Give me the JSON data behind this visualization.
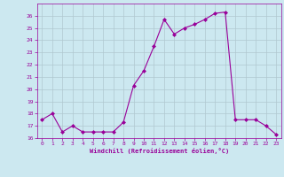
{
  "x": [
    0,
    1,
    2,
    3,
    4,
    5,
    6,
    7,
    8,
    9,
    10,
    11,
    12,
    13,
    14,
    15,
    16,
    17,
    18,
    19,
    20,
    21,
    22,
    23
  ],
  "y": [
    17.5,
    18.0,
    16.5,
    17.0,
    16.5,
    16.5,
    16.5,
    16.5,
    17.3,
    20.3,
    21.5,
    23.5,
    25.7,
    24.5,
    25.0,
    25.3,
    25.7,
    26.2,
    26.3,
    17.5,
    17.5,
    17.5,
    17.0,
    16.3
  ],
  "ylim": [
    16,
    27
  ],
  "xlim": [
    -0.5,
    23.5
  ],
  "yticks": [
    16,
    17,
    18,
    19,
    20,
    21,
    22,
    23,
    24,
    25,
    26
  ],
  "xticks": [
    0,
    1,
    2,
    3,
    4,
    5,
    6,
    7,
    8,
    9,
    10,
    11,
    12,
    13,
    14,
    15,
    16,
    17,
    18,
    19,
    20,
    21,
    22,
    23
  ],
  "xlabel": "Windchill (Refroidissement éolien,°C)",
  "line_color": "#990099",
  "marker_color": "#990099",
  "bg_color": "#cce8f0",
  "grid_color": "#b0c8d0",
  "axis_color": "#990099",
  "tick_color": "#990099",
  "label_color": "#990099",
  "fig_width": 3.2,
  "fig_height": 2.0,
  "dpi": 100
}
